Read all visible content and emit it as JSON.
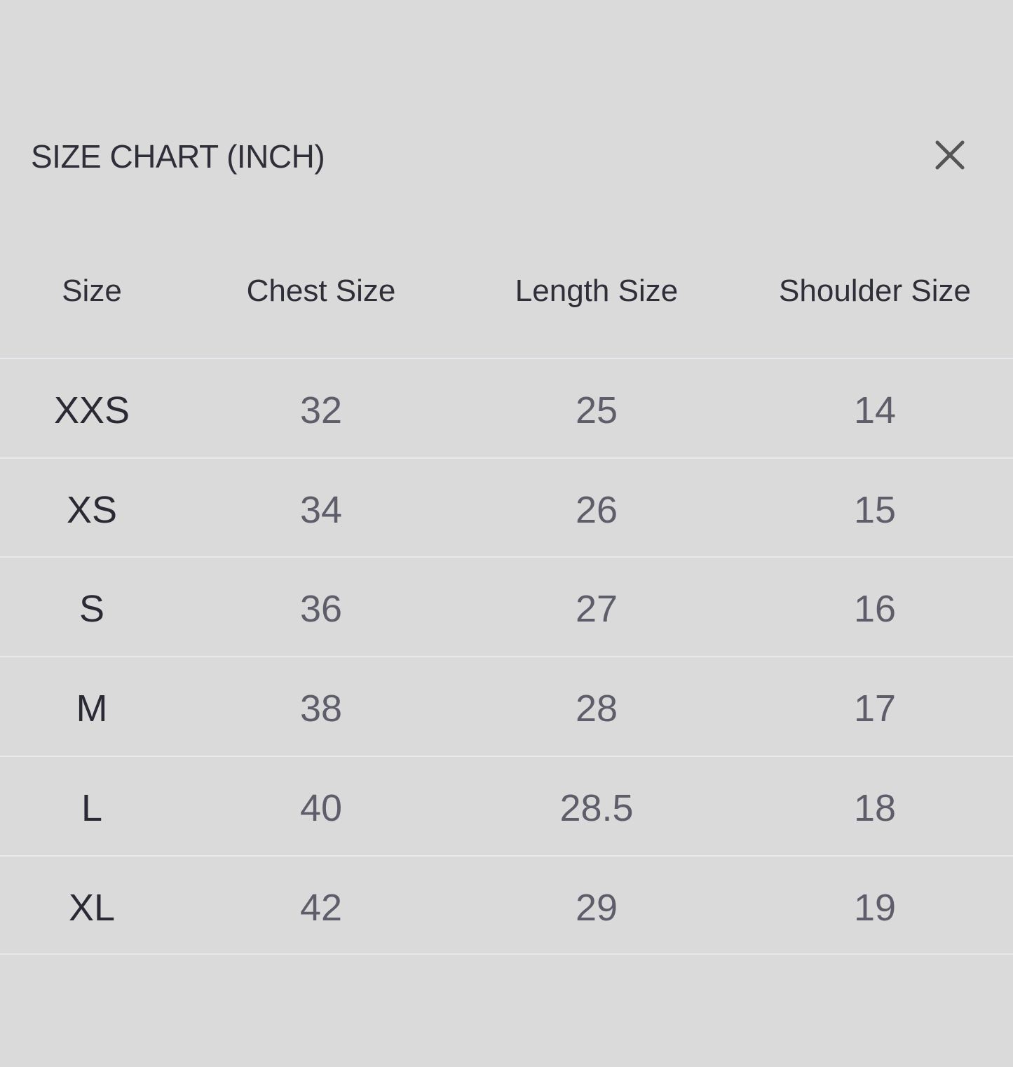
{
  "title": "SIZE CHART (INCH)",
  "close_icon": "close-icon",
  "table": {
    "headers": [
      "Size",
      "Chest Size",
      "Length Size",
      "Shoulder Size"
    ],
    "rows": [
      [
        "XXS",
        "32",
        "25",
        "14"
      ],
      [
        "XS",
        "34",
        "26",
        "15"
      ],
      [
        "S",
        "36",
        "27",
        "16"
      ],
      [
        "M",
        "38",
        "28",
        "17"
      ],
      [
        "L",
        "40",
        "28.5",
        "18"
      ],
      [
        "XL",
        "42",
        "29",
        "19"
      ]
    ]
  }
}
